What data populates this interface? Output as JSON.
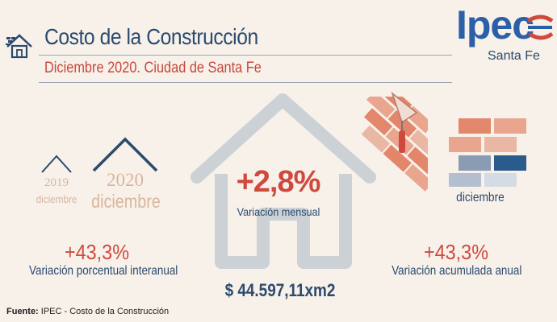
{
  "header": {
    "title": "Costo de la Construcción",
    "subtitle": "Diciembre 2020. Ciudad de Santa Fe"
  },
  "brand": {
    "name": "Ipec",
    "city": "Santa Fe"
  },
  "comparison": {
    "year_a": "2019",
    "label_a": "diciembre",
    "year_b": "2020",
    "label_b": "diciembre"
  },
  "monthly": {
    "value": "+2,8%",
    "label": "Variación mensual"
  },
  "price": {
    "value": "$ 44.597,11xm2"
  },
  "interannual": {
    "value": "+43,3%",
    "label": "Variación porcentual interanual"
  },
  "annual": {
    "value": "+43,3%",
    "label": "Variación acumulada anual",
    "month": "diciembre"
  },
  "footer": {
    "source_key": "Fuente:",
    "source_text": " IPEC - Costo de la Construcción"
  },
  "icons": [
    "house-icon",
    "ipec-logo-icon",
    "roof-2019-icon",
    "roof-2020-icon",
    "house-outline-icon",
    "roof-bricks-icon",
    "trowel-icon",
    "brick-wall-icon"
  ],
  "colors": {
    "navy": "#2b4a6e",
    "red": "#d0493d",
    "beige": "#d9b69e",
    "brick": "#e08a6f",
    "grey": "#ccd1d6",
    "blue": "#2b5fa8"
  }
}
